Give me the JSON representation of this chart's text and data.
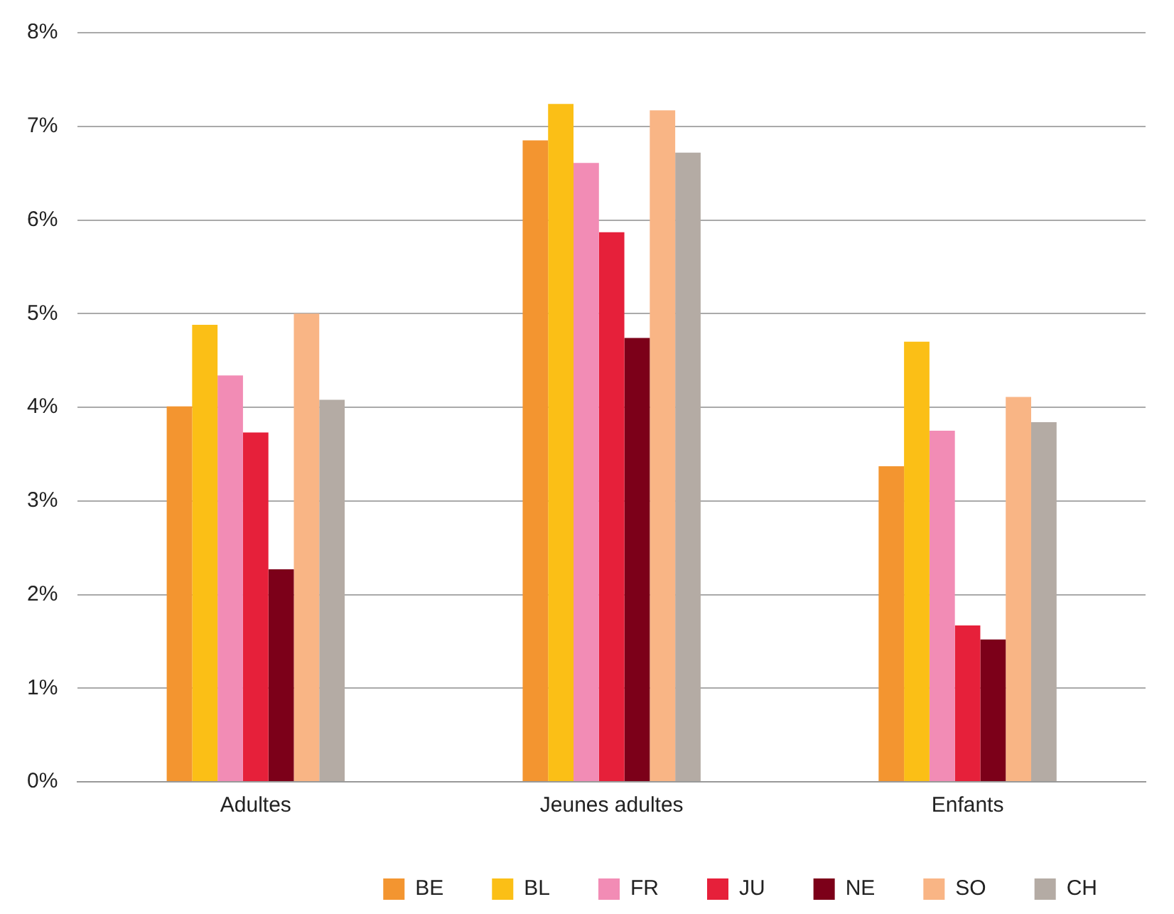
{
  "chart_data": {
    "type": "bar",
    "categories": [
      "Adultes",
      "Jeunes adultes",
      "Enfants"
    ],
    "series": [
      {
        "name": "BE",
        "color": "#f39530",
        "values": [
          4.01,
          6.85,
          3.37
        ]
      },
      {
        "name": "BL",
        "color": "#fbbf16",
        "values": [
          4.88,
          7.24,
          4.7
        ]
      },
      {
        "name": "FR",
        "color": "#f28cb5",
        "values": [
          4.34,
          6.61,
          3.75
        ]
      },
      {
        "name": "JU",
        "color": "#e6203a",
        "values": [
          3.73,
          5.87,
          1.67
        ]
      },
      {
        "name": "NE",
        "color": "#7c0019",
        "values": [
          2.27,
          4.74,
          1.52
        ]
      },
      {
        "name": "SO",
        "color": "#f9b585",
        "values": [
          5.0,
          7.17,
          4.11
        ]
      },
      {
        "name": "CH",
        "color": "#b4aba4",
        "values": [
          4.08,
          6.72,
          3.84
        ]
      }
    ],
    "ylim": [
      0,
      8
    ],
    "yticks": [
      {
        "value": 0,
        "label": "0%"
      },
      {
        "value": 1,
        "label": "1%"
      },
      {
        "value": 2,
        "label": "2%"
      },
      {
        "value": 3,
        "label": "3%"
      },
      {
        "value": 4,
        "label": "4%"
      },
      {
        "value": 5,
        "label": "5%"
      },
      {
        "value": 6,
        "label": "6%"
      },
      {
        "value": 7,
        "label": "7%"
      },
      {
        "value": 8,
        "label": "8%"
      }
    ],
    "grid": "y",
    "legend": "bottom right"
  }
}
